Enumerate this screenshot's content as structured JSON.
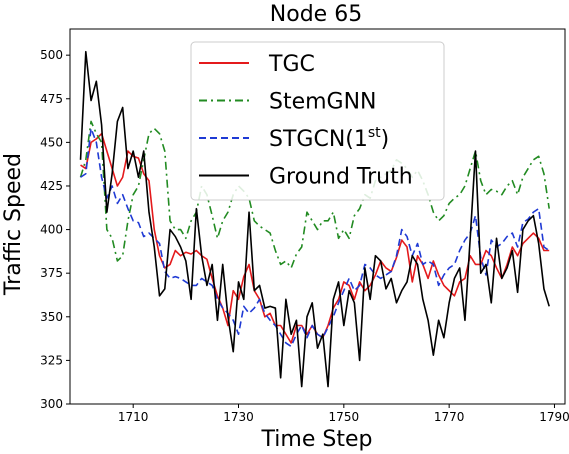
{
  "chart_data": {
    "type": "line",
    "title": "Node 65",
    "xlabel": "Time Step",
    "ylabel": "Traffic Speed",
    "xlim": [
      1698,
      1792
    ],
    "ylim": [
      300,
      515
    ],
    "xticks": [
      "1710",
      "1730",
      "1750",
      "1770",
      "1790"
    ],
    "yticks": [
      "300",
      "325",
      "350",
      "375",
      "400",
      "425",
      "450",
      "475",
      "500"
    ],
    "legend_position": "top-center",
    "grid": false,
    "x": [
      1700,
      1701,
      1702,
      1703,
      1704,
      1705,
      1706,
      1707,
      1708,
      1709,
      1710,
      1711,
      1712,
      1713,
      1714,
      1715,
      1716,
      1717,
      1718,
      1719,
      1720,
      1721,
      1722,
      1723,
      1724,
      1725,
      1726,
      1727,
      1728,
      1729,
      1730,
      1731,
      1732,
      1733,
      1734,
      1735,
      1736,
      1737,
      1738,
      1739,
      1740,
      1741,
      1742,
      1743,
      1744,
      1745,
      1746,
      1747,
      1748,
      1749,
      1750,
      1751,
      1752,
      1753,
      1754,
      1755,
      1756,
      1757,
      1758,
      1759,
      1760,
      1761,
      1762,
      1763,
      1764,
      1765,
      1766,
      1767,
      1768,
      1769,
      1770,
      1771,
      1772,
      1773,
      1774,
      1775,
      1776,
      1777,
      1778,
      1779,
      1780,
      1781,
      1782,
      1783,
      1784,
      1785,
      1786,
      1787,
      1788,
      1789
    ],
    "series": [
      {
        "name": "TGC",
        "color": "#e41a1c",
        "dash": "solid",
        "values": [
          437,
          435,
          450,
          452,
          455,
          445,
          435,
          425,
          430,
          445,
          442,
          441,
          432,
          428,
          400,
          385,
          378,
          380,
          388,
          385,
          387,
          386,
          388,
          385,
          383,
          372,
          362,
          355,
          345,
          365,
          360,
          373,
          380,
          365,
          360,
          350,
          352,
          345,
          345,
          340,
          335,
          345,
          345,
          340,
          345,
          340,
          338,
          345,
          355,
          360,
          370,
          368,
          360,
          370,
          365,
          368,
          374,
          382,
          378,
          376,
          384,
          394,
          390,
          370,
          385,
          380,
          372,
          382,
          374,
          368,
          365,
          362,
          370,
          372,
          385,
          380,
          380,
          388,
          385,
          378,
          372,
          380,
          390,
          385,
          392,
          395,
          398,
          395,
          388,
          388
        ]
      },
      {
        "name": "StemGNN",
        "color": "#228b22",
        "dash": "8,4,2,4",
        "values": [
          430,
          440,
          462,
          455,
          450,
          400,
          395,
          382,
          385,
          405,
          420,
          425,
          440,
          455,
          458,
          455,
          445,
          405,
          400,
          400,
          395,
          405,
          410,
          425,
          420,
          408,
          395,
          405,
          410,
          420,
          425,
          422,
          418,
          405,
          402,
          400,
          398,
          388,
          380,
          382,
          378,
          386,
          390,
          410,
          405,
          400,
          405,
          405,
          410,
          395,
          400,
          395,
          408,
          412,
          420,
          418,
          428,
          430,
          432,
          434,
          440,
          438,
          435,
          430,
          434,
          428,
          420,
          410,
          405,
          408,
          415,
          418,
          420,
          425,
          435,
          445,
          428,
          420,
          423,
          422,
          420,
          425,
          428,
          420,
          430,
          435,
          440,
          442,
          432,
          412
        ]
      },
      {
        "name": "STGCN(1st)",
        "color": "#1f3ad4",
        "dash": "7,4",
        "values": [
          430,
          432,
          458,
          450,
          430,
          418,
          425,
          415,
          420,
          412,
          405,
          404,
          396,
          398,
          395,
          392,
          376,
          372,
          373,
          372,
          370,
          368,
          368,
          372,
          370,
          368,
          360,
          355,
          352,
          348,
          340,
          356,
          352,
          355,
          360,
          352,
          348,
          345,
          340,
          335,
          333,
          340,
          345,
          338,
          345,
          340,
          338,
          344,
          350,
          358,
          365,
          372,
          365,
          368,
          380,
          378,
          374,
          372,
          374,
          376,
          385,
          400,
          396,
          385,
          392,
          380,
          382,
          380,
          368,
          374,
          378,
          380,
          388,
          394,
          398,
          408,
          384,
          374,
          394,
          390,
          392,
          396,
          398,
          390,
          404,
          406,
          410,
          412,
          390,
          388
        ]
      },
      {
        "name": "Ground Truth",
        "color": "#000000",
        "dash": "solid",
        "values": [
          440,
          502,
          474,
          485,
          460,
          410,
          432,
          462,
          470,
          435,
          445,
          430,
          445,
          410,
          390,
          362,
          366,
          400,
          396,
          390,
          382,
          360,
          412,
          385,
          368,
          380,
          348,
          380,
          350,
          330,
          370,
          360,
          410,
          365,
          368,
          355,
          356,
          355,
          315,
          360,
          340,
          348,
          310,
          350,
          358,
          332,
          340,
          310,
          360,
          370,
          345,
          365,
          358,
          325,
          378,
          360,
          385,
          382,
          366,
          372,
          358,
          365,
          370,
          385,
          380,
          360,
          348,
          328,
          348,
          338,
          358,
          372,
          378,
          348,
          395,
          445,
          375,
          380,
          358,
          395,
          372,
          378,
          388,
          364,
          400,
          405,
          408,
          392,
          366,
          356
        ]
      }
    ]
  }
}
